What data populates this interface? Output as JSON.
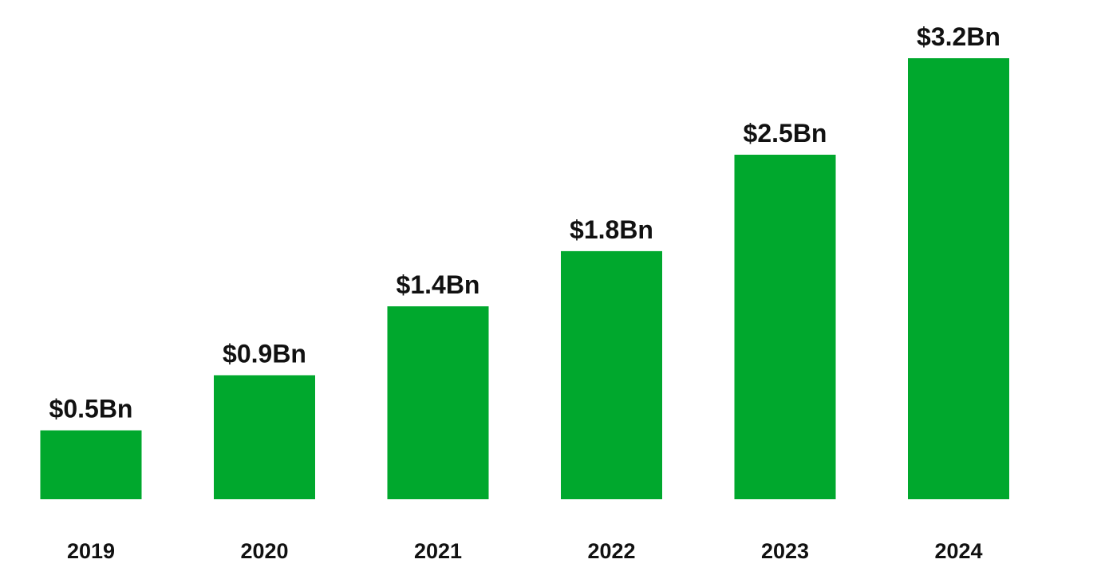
{
  "chart_data": {
    "type": "bar",
    "title": "",
    "xlabel": "",
    "ylabel": "",
    "categories": [
      "2019",
      "2020",
      "2021",
      "2022",
      "2023",
      "2024"
    ],
    "values": [
      0.5,
      0.9,
      1.4,
      1.8,
      2.5,
      3.2
    ],
    "data_labels": [
      "$0.5Bn",
      "$0.9Bn",
      "$1.4Bn",
      "$1.8Bn",
      "$2.5Bn",
      "$3.2Bn"
    ],
    "ylim": [
      0,
      3.2
    ],
    "grid": false,
    "legend": "none",
    "bar_color": "#00A82D"
  }
}
